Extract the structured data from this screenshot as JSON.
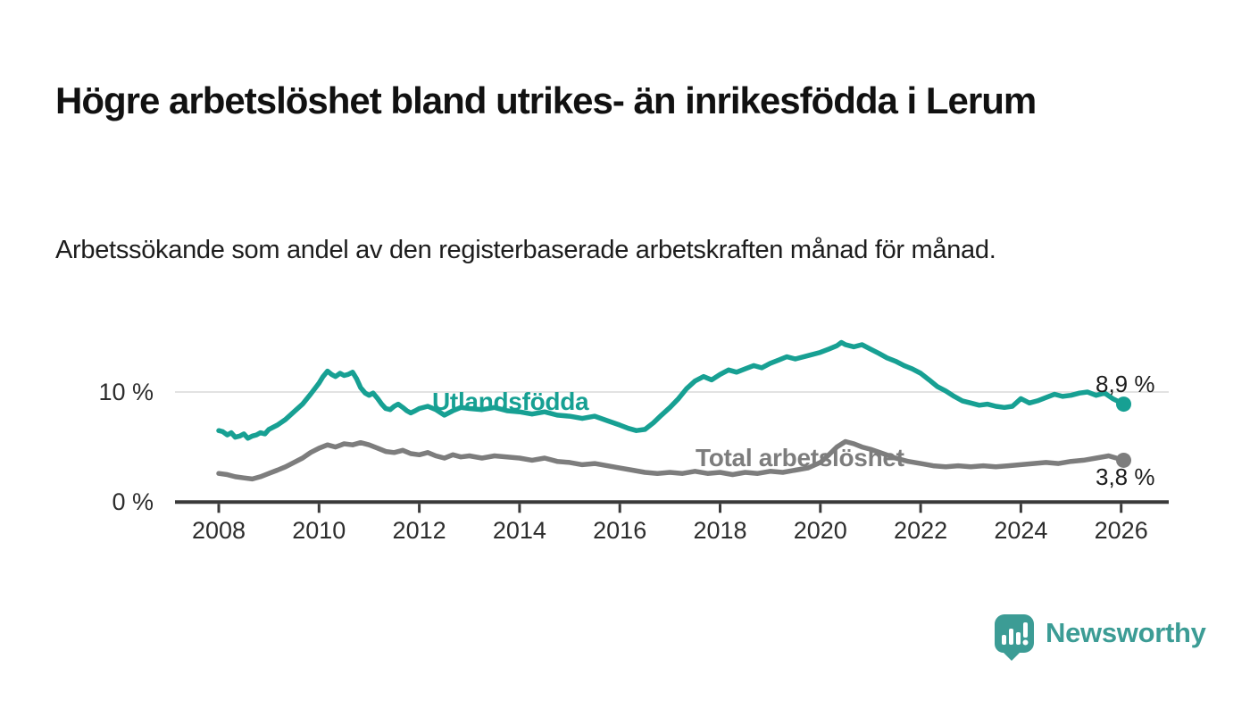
{
  "header": {
    "title": "Högre arbetslöshet bland utrikes- än inrikesfödda i Lerum",
    "subtitle": "Arbetssökande som andel av den registerbaserade arbetskraften månad för månad."
  },
  "chart_data": {
    "type": "line",
    "title": "Högre arbetslöshet bland utrikes- än inrikesfödda i Lerum",
    "xlabel": "",
    "ylabel": "Arbetssökande som andel av den registerbaserade arbetskraften",
    "grid": "horizontal gridline at 10 % only",
    "legend_position": "inline labels on lines",
    "x_axis": {
      "ticks": [
        2008,
        2010,
        2012,
        2014,
        2016,
        2018,
        2020,
        2022,
        2024,
        2026
      ],
      "range": [
        2007.1,
        2027.0
      ]
    },
    "y_axis": {
      "ticks": [
        {
          "value": 0,
          "label": "0 %"
        },
        {
          "value": 10,
          "label": "10 %"
        }
      ],
      "gridlines": [
        10
      ],
      "range": [
        0,
        15.2
      ]
    },
    "series": [
      {
        "name": "Utlandsfödda",
        "color": "#17a093",
        "end_value": 8.9,
        "end_label": "8,9 %",
        "x": [
          2008.0,
          2008.08,
          2008.17,
          2008.25,
          2008.33,
          2008.42,
          2008.5,
          2008.58,
          2008.67,
          2008.75,
          2008.83,
          2008.92,
          2009.0,
          2009.17,
          2009.33,
          2009.5,
          2009.67,
          2009.83,
          2010.0,
          2010.08,
          2010.17,
          2010.25,
          2010.33,
          2010.42,
          2010.5,
          2010.58,
          2010.67,
          2010.75,
          2010.83,
          2010.92,
          2011.0,
          2011.08,
          2011.17,
          2011.25,
          2011.33,
          2011.42,
          2011.5,
          2011.58,
          2011.67,
          2011.75,
          2011.83,
          2011.92,
          2012.0,
          2012.17,
          2012.33,
          2012.5,
          2012.67,
          2012.83,
          2013.0,
          2013.25,
          2013.5,
          2013.75,
          2014.0,
          2014.25,
          2014.5,
          2014.75,
          2015.0,
          2015.25,
          2015.5,
          2015.75,
          2016.0,
          2016.17,
          2016.33,
          2016.5,
          2016.67,
          2016.83,
          2017.0,
          2017.17,
          2017.33,
          2017.5,
          2017.67,
          2017.83,
          2018.0,
          2018.17,
          2018.33,
          2018.5,
          2018.67,
          2018.83,
          2019.0,
          2019.17,
          2019.33,
          2019.5,
          2019.75,
          2020.0,
          2020.17,
          2020.33,
          2020.42,
          2020.5,
          2020.67,
          2020.83,
          2021.0,
          2021.17,
          2021.33,
          2021.5,
          2021.67,
          2021.83,
          2022.0,
          2022.17,
          2022.33,
          2022.5,
          2022.67,
          2022.83,
          2023.0,
          2023.17,
          2023.33,
          2023.5,
          2023.67,
          2023.83,
          2024.0,
          2024.17,
          2024.33,
          2024.5,
          2024.67,
          2024.83,
          2025.0,
          2025.17,
          2025.33,
          2025.5,
          2025.67,
          2025.83,
          2026.05
        ],
        "values": [
          6.5,
          6.4,
          6.1,
          6.3,
          5.9,
          6.0,
          6.2,
          5.8,
          6.0,
          6.1,
          6.3,
          6.2,
          6.6,
          7.0,
          7.5,
          8.2,
          8.9,
          9.8,
          10.8,
          11.4,
          11.9,
          11.6,
          11.4,
          11.7,
          11.5,
          11.6,
          11.8,
          11.2,
          10.4,
          9.9,
          9.7,
          9.9,
          9.4,
          8.9,
          8.5,
          8.4,
          8.7,
          8.9,
          8.6,
          8.3,
          8.1,
          8.3,
          8.5,
          8.7,
          8.4,
          7.9,
          8.3,
          8.6,
          8.5,
          8.4,
          8.6,
          8.3,
          8.2,
          8.0,
          8.2,
          7.9,
          7.8,
          7.6,
          7.8,
          7.4,
          7.0,
          6.7,
          6.5,
          6.6,
          7.2,
          7.9,
          8.6,
          9.4,
          10.3,
          11.0,
          11.4,
          11.1,
          11.6,
          12.0,
          11.8,
          12.1,
          12.4,
          12.2,
          12.6,
          12.9,
          13.2,
          13.0,
          13.3,
          13.6,
          13.9,
          14.2,
          14.5,
          14.3,
          14.1,
          14.3,
          13.9,
          13.5,
          13.1,
          12.8,
          12.4,
          12.1,
          11.7,
          11.1,
          10.5,
          10.1,
          9.6,
          9.2,
          9.0,
          8.8,
          8.9,
          8.7,
          8.6,
          8.7,
          9.4,
          9.0,
          9.2,
          9.5,
          9.8,
          9.6,
          9.7,
          9.9,
          10.0,
          9.7,
          9.9,
          9.4,
          8.9
        ]
      },
      {
        "name": "Total arbetslöshet",
        "color": "#7d7d7d",
        "end_value": 3.8,
        "end_label": "3,8 %",
        "x": [
          2008.0,
          2008.17,
          2008.33,
          2008.5,
          2008.67,
          2008.83,
          2009.0,
          2009.17,
          2009.33,
          2009.5,
          2009.67,
          2009.83,
          2010.0,
          2010.17,
          2010.33,
          2010.5,
          2010.67,
          2010.83,
          2011.0,
          2011.17,
          2011.33,
          2011.5,
          2011.67,
          2011.83,
          2012.0,
          2012.17,
          2012.33,
          2012.5,
          2012.67,
          2012.83,
          2013.0,
          2013.25,
          2013.5,
          2013.75,
          2014.0,
          2014.25,
          2014.5,
          2014.75,
          2015.0,
          2015.25,
          2015.5,
          2015.75,
          2016.0,
          2016.25,
          2016.5,
          2016.75,
          2017.0,
          2017.25,
          2017.5,
          2017.75,
          2018.0,
          2018.25,
          2018.5,
          2018.75,
          2019.0,
          2019.25,
          2019.5,
          2019.75,
          2020.0,
          2020.17,
          2020.33,
          2020.5,
          2020.67,
          2020.83,
          2021.0,
          2021.25,
          2021.5,
          2021.75,
          2022.0,
          2022.25,
          2022.5,
          2022.75,
          2023.0,
          2023.25,
          2023.5,
          2023.75,
          2024.0,
          2024.25,
          2024.5,
          2024.75,
          2025.0,
          2025.25,
          2025.5,
          2025.75,
          2026.05
        ],
        "values": [
          2.6,
          2.5,
          2.3,
          2.2,
          2.1,
          2.3,
          2.6,
          2.9,
          3.2,
          3.6,
          4.0,
          4.5,
          4.9,
          5.2,
          5.0,
          5.3,
          5.2,
          5.4,
          5.2,
          4.9,
          4.6,
          4.5,
          4.7,
          4.4,
          4.3,
          4.5,
          4.2,
          4.0,
          4.3,
          4.1,
          4.2,
          4.0,
          4.2,
          4.1,
          4.0,
          3.8,
          4.0,
          3.7,
          3.6,
          3.4,
          3.5,
          3.3,
          3.1,
          2.9,
          2.7,
          2.6,
          2.7,
          2.6,
          2.8,
          2.6,
          2.7,
          2.5,
          2.7,
          2.6,
          2.8,
          2.7,
          2.9,
          3.1,
          3.6,
          4.3,
          5.0,
          5.5,
          5.3,
          5.0,
          4.8,
          4.4,
          4.0,
          3.7,
          3.5,
          3.3,
          3.2,
          3.3,
          3.2,
          3.3,
          3.2,
          3.3,
          3.4,
          3.5,
          3.6,
          3.5,
          3.7,
          3.8,
          4.0,
          4.2,
          3.8
        ]
      }
    ],
    "style": {
      "grid_color": "#d9d9d9",
      "axis_color": "#3a3a3a",
      "tick_label_color": "#2d2d2d"
    }
  },
  "footer": {
    "brand": "Newsworthy",
    "brand_color": "#3c9c95",
    "logo_icon": "bar-chart-speech-bubble-icon"
  }
}
